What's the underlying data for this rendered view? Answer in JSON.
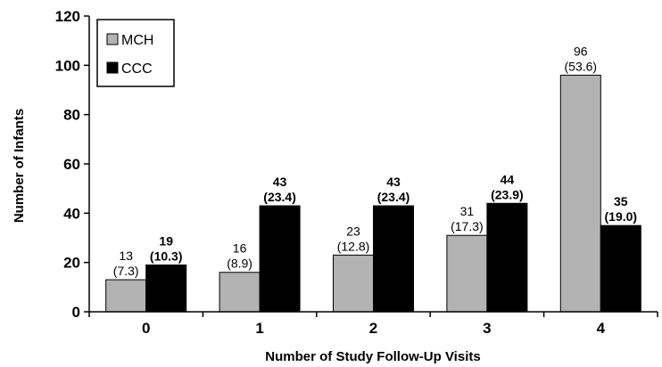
{
  "chart_data": {
    "type": "bar",
    "title": "",
    "xlabel": "Number of Study Follow-Up Visits",
    "ylabel": "Number of Infants",
    "categories": [
      "0",
      "1",
      "2",
      "3",
      "4"
    ],
    "ylim": [
      0,
      120
    ],
    "yticks": [
      "0",
      "20",
      "40",
      "60",
      "80",
      "100",
      "120"
    ],
    "legend_position": "top-left",
    "grid": false,
    "series": [
      {
        "name": "MCH",
        "color": "#b3b3b3",
        "values": [
          13,
          16,
          23,
          31,
          96
        ],
        "labels": [
          "13",
          "16",
          "23",
          "31",
          "96"
        ],
        "percent_labels": [
          "(7.3)",
          "(8.9)",
          "(12.8)",
          "(17.3)",
          "(53.6)"
        ]
      },
      {
        "name": "CCC",
        "color": "#000000",
        "values": [
          19,
          43,
          43,
          44,
          35
        ],
        "labels": [
          "19",
          "43",
          "43",
          "44",
          "35"
        ],
        "percent_labels": [
          "(10.3)",
          "(23.4)",
          "(23.4)",
          "(23.9)",
          "(19.0)"
        ]
      }
    ]
  }
}
